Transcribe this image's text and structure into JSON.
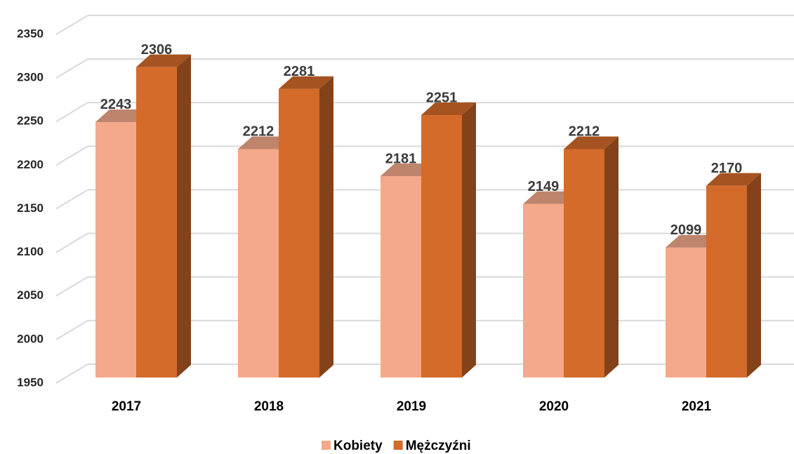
{
  "chart_data": {
    "type": "bar3d",
    "categories": [
      "2017",
      "2018",
      "2019",
      "2020",
      "2021"
    ],
    "series": [
      {
        "name": "Kobiety",
        "color": "#f4a98a",
        "values": [
          2243,
          2212,
          2181,
          2149,
          2099
        ]
      },
      {
        "name": "Mężczyźni",
        "color": "#d46b2a",
        "values": [
          2306,
          2281,
          2251,
          2212,
          2170
        ]
      }
    ],
    "ylim": [
      1950,
      2350
    ],
    "yticks": [
      1950,
      2000,
      2050,
      2100,
      2150,
      2200,
      2250,
      2300,
      2350
    ],
    "grid": true,
    "legend": "bottom"
  }
}
